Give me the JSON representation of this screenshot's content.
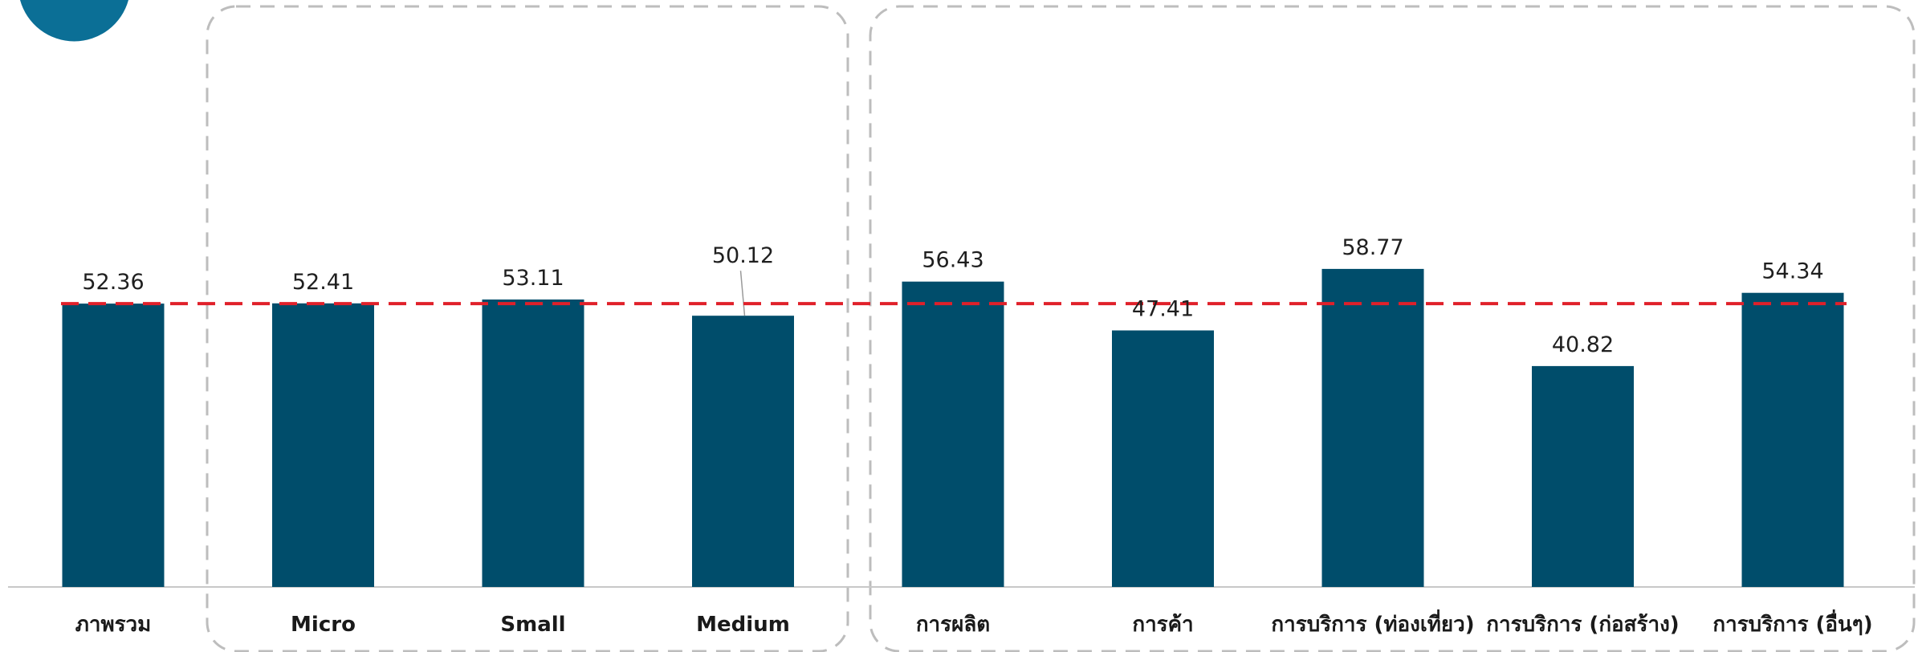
{
  "chart_data": {
    "type": "bar",
    "categories": [
      "ภาพรวม",
      "Micro",
      "Small",
      "Medium",
      "การผลิต",
      "การค้า",
      "การบริการ (ท่องเที่ยว)",
      "การบริการ (ก่อสร้าง)",
      "การบริการ (อื่นๆ)"
    ],
    "values": [
      52.36,
      52.41,
      53.11,
      50.12,
      56.43,
      47.41,
      58.77,
      40.82,
      54.34
    ],
    "value_labels": [
      "52.36",
      "52.41",
      "53.11",
      "50.12",
      "56.43",
      "47.41",
      "58.77",
      "40.82",
      "54.34"
    ],
    "reference_line": {
      "value": 52.36,
      "color": "#e0202a",
      "style": "dashed"
    },
    "groups": [
      {
        "categories": [
          "Micro",
          "Small",
          "Medium"
        ],
        "style": "dashed-box"
      },
      {
        "categories": [
          "การผลิต",
          "การค้า",
          "การบริการ (ท่องเที่ยว)",
          "การบริการ (ก่อสร้าง)",
          "การบริการ (อื่นๆ)"
        ],
        "style": "dashed-box"
      }
    ],
    "ylim": [
      0,
      70
    ],
    "grid": false,
    "legend": "none",
    "title": "",
    "xlabel": "",
    "ylabel": ""
  },
  "colors": {
    "bar": "#004d6b",
    "axis": "#c8c8c8",
    "group_border": "#bdbdbd",
    "reference_line": "#e0202a",
    "badge": "#0b6f96"
  }
}
